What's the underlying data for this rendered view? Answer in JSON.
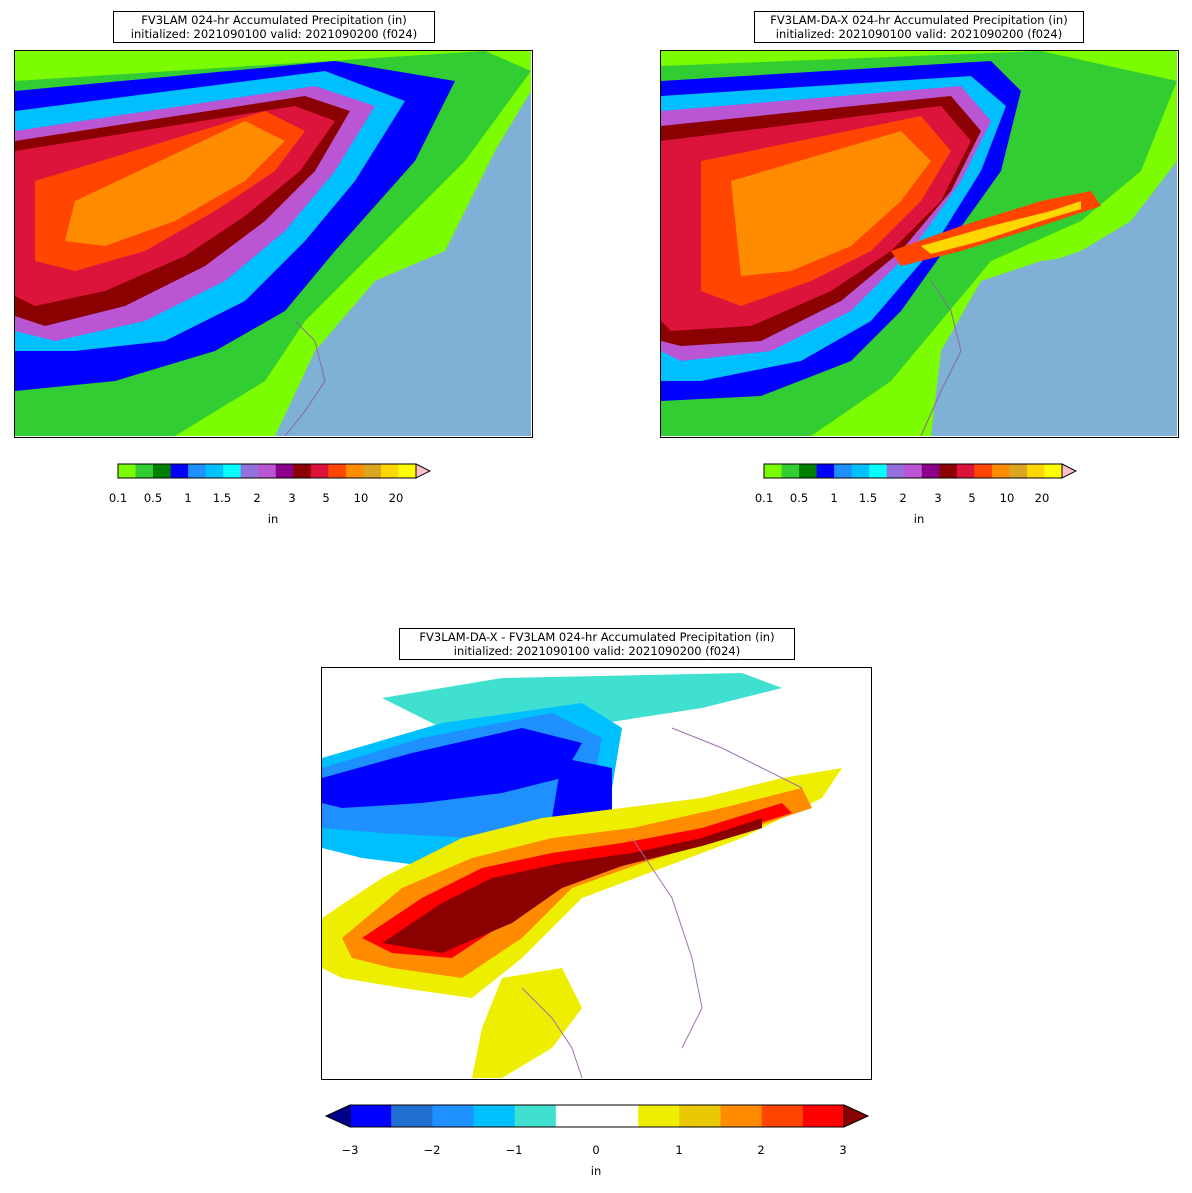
{
  "panels": [
    {
      "title_line1": "FV3LAM 024-hr Accumulated Precipitation (in)",
      "title_line2": "initialized: 2021090100 valid: 2021090200 (f024)",
      "colorbar_ticks": [
        "0.1",
        "0.5",
        "1",
        "1.5",
        "2",
        "3",
        "5",
        "10",
        "20"
      ],
      "colorbar_unit": "in"
    },
    {
      "title_line1": "FV3LAM-DA-X 024-hr Accumulated Precipitation (in)",
      "title_line2": "initialized: 2021090100 valid: 2021090200 (f024)",
      "colorbar_ticks": [
        "0.1",
        "0.5",
        "1",
        "1.5",
        "2",
        "3",
        "5",
        "10",
        "20"
      ],
      "colorbar_unit": "in"
    },
    {
      "title_line1": "FV3LAM-DA-X - FV3LAM 024-hr Accumulated Precipitation (in)",
      "title_line2": "initialized: 2021090100 valid: 2021090200 (f024)",
      "colorbar_ticks": [
        "−3",
        "−2",
        "−1",
        "0",
        "1",
        "2",
        "3"
      ],
      "colorbar_unit": "in"
    }
  ],
  "precip_colors": [
    "#7cfc00",
    "#32cd32",
    "#008000",
    "#0000ff",
    "#1e90ff",
    "#00bfff",
    "#00ffff",
    "#9370db",
    "#ba55d3",
    "#8b008b",
    "#8b0000",
    "#dc143c",
    "#ff4500",
    "#ff8c00",
    "#daa520",
    "#ffd700",
    "#ffff00",
    "#ffc0cb"
  ],
  "diff_colors": [
    "#00008b",
    "#0000ff",
    "#1e6fd0",
    "#1e90ff",
    "#00bfff",
    "#40e0d0",
    "#ffffff",
    "#ffffff",
    "#eeee00",
    "#e8c800",
    "#ff8c00",
    "#ff4500",
    "#ff0000",
    "#8b0000"
  ],
  "background_colors": {
    "ocean": "#7fb0d6",
    "land": "#c8c8c8"
  }
}
